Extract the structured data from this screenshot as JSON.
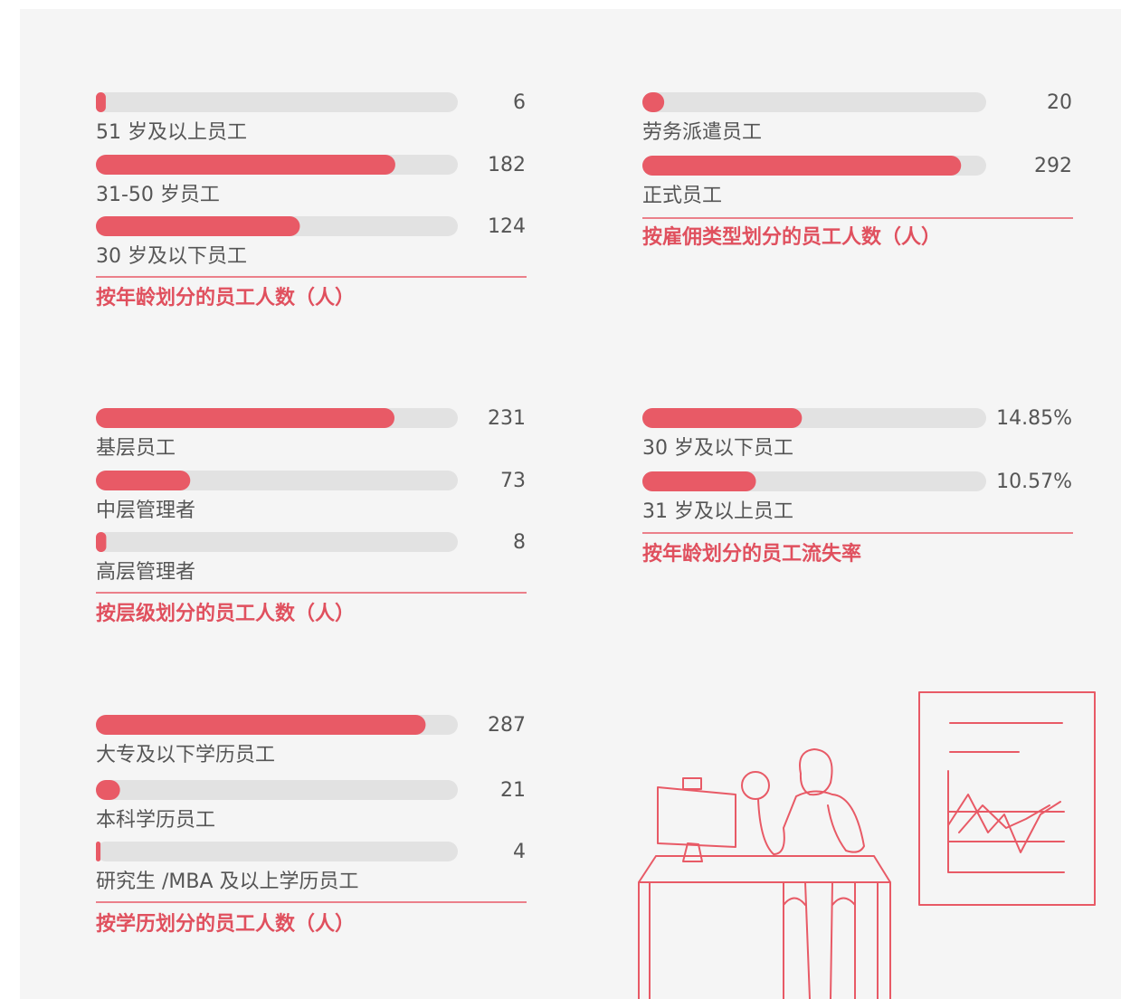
{
  "chart_data": [
    {
      "type": "bar",
      "orientation": "horizontal",
      "title": "按年龄划分的员工人数（人）",
      "categories": [
        "51 岁及以上员工",
        "31-50 岁员工",
        "30 岁及以下员工"
      ],
      "values": [
        6,
        182,
        124
      ],
      "xlim": [
        0,
        220
      ],
      "color": "#e85a66",
      "track_color": "#e2e2e2"
    },
    {
      "type": "bar",
      "orientation": "horizontal",
      "title": "按雇佣类型划分的员工人数（人）",
      "categories": [
        "劳务派遣员工",
        "正式员工"
      ],
      "values": [
        20,
        292
      ],
      "xlim": [
        0,
        315
      ],
      "color": "#e85a66",
      "track_color": "#e2e2e2"
    },
    {
      "type": "bar",
      "orientation": "horizontal",
      "title": "按层级划分的员工人数（人）",
      "categories": [
        "基层员工",
        "中层管理者",
        "高层管理者"
      ],
      "values": [
        231,
        73,
        8
      ],
      "xlim": [
        0,
        280
      ],
      "color": "#e85a66",
      "track_color": "#e2e2e2"
    },
    {
      "type": "bar",
      "orientation": "horizontal",
      "title": "按年龄划分的员工流失率",
      "categories": [
        "30 岁及以下员工",
        "31 岁及以上员工"
      ],
      "values": [
        14.85,
        10.57
      ],
      "value_labels": [
        "14.85%",
        "10.57%"
      ],
      "xlim": [
        0,
        32
      ],
      "color": "#e85a66",
      "track_color": "#e2e2e2"
    },
    {
      "type": "bar",
      "orientation": "horizontal",
      "title": "按学历划分的员工人数（人）",
      "categories": [
        "大专及以下学历员工",
        "本科学历员工",
        "研究生 /MBA 及以上学历员工"
      ],
      "values": [
        287,
        21,
        4
      ],
      "xlim": [
        0,
        315
      ],
      "color": "#e85a66",
      "track_color": "#e2e2e2"
    }
  ]
}
